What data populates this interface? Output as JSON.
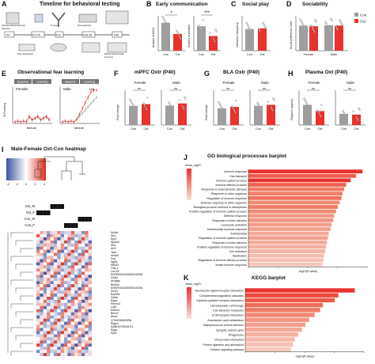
{
  "panels": {
    "A": {
      "label": "A",
      "title": "Timeline for behavioral testing",
      "steps": [
        "Intracranial dorsal pad injection",
        "Pup separation",
        "P-ovary",
        "Pre-pubertal",
        "Observational fear learning"
      ],
      "ages": [
        "P0",
        "P2-P5",
        "P21",
        "P34-36",
        "P40"
      ]
    },
    "B": {
      "label": "B",
      "title": "Early communication",
      "ylabel1": "Number of USVs",
      "ylabel2": "Number of phrases",
      "sig1": "*",
      "sig2": "***",
      "groups": [
        "Con",
        "Oxt"
      ],
      "usv": [
        {
          "group": "Con",
          "value": 80
        },
        {
          "group": "Oxt",
          "value": 48
        }
      ],
      "phrases": [
        {
          "group": "Con",
          "value": 70
        },
        {
          "group": "Oxt",
          "value": 42
        }
      ]
    },
    "C": {
      "label": "C",
      "title": "Social play",
      "ylabel": "Interaction frequency",
      "bars": [
        {
          "group": "Con",
          "value": 0.62
        },
        {
          "group": "Oxt",
          "value": 0.64
        }
      ]
    },
    "D": {
      "label": "D",
      "title": "Sociability",
      "ylabel": "Social preference index",
      "categories": [
        "Female",
        "Male"
      ],
      "legend": [
        {
          "name": "Con",
          "color": "#9e9e9e"
        },
        {
          "name": "Oxt",
          "color": "#e8322e"
        }
      ],
      "bars": [
        [
          0.72,
          0.7
        ],
        [
          0.73,
          0.72
        ]
      ]
    },
    "E": {
      "label": "E",
      "title": "Observational fear learning",
      "ylabel": "% Freezing",
      "xlabel": "Minute",
      "sublabels": [
        "Female",
        "Male"
      ],
      "phases": [
        "Baseline",
        "Learning"
      ],
      "sig": "***"
    },
    "F": {
      "label": "F",
      "title": "mPFC Oxtr (P40)",
      "ylabel": "Fold change",
      "sub": [
        "Female",
        "Male"
      ],
      "ns": "ns"
    },
    "G": {
      "label": "G",
      "title": "BLA Oxtr (P40)",
      "ylabel": "Fold change",
      "sub": [
        "Female",
        "Male"
      ],
      "ns": "ns"
    },
    "H": {
      "label": "H",
      "title": "Plasma Oxt (P40)",
      "ylabel": "Oxytocin (pg/mL)",
      "sub": [
        "Female",
        "Male"
      ],
      "ns": "ns"
    },
    "I": {
      "label": "I",
      "title": "Male-Female Oxt-Con heatmap",
      "scale": [
        "-4",
        "-2",
        "0",
        "2",
        "4"
      ],
      "rows": [
        "Oxt_M",
        "Oxt_F",
        "Con_M",
        "Con_F"
      ],
      "genes": [
        "Nr4a1",
        "Sik1",
        "Egr2",
        "Apold1",
        "Klf4",
        "Arl3",
        "Tcim",
        "Nr4a3",
        "Fos",
        "Sgrip",
        "Mbnl2",
        "Ctla-1",
        "Lrrc15",
        "ENSRNOG00000019208",
        "Gfra2",
        "Arhgap",
        "Bhlhe2",
        "ENSRNOG00000019205",
        "Derl3",
        "Rpl35a",
        "Gabb",
        "Pcgp3",
        "Ptcrnd1",
        "Lrp6",
        "Enthd1",
        "Dusp6",
        "Mecil",
        "1700028M03Rik",
        "Ptgsrv",
        "Rgs8",
        "Trpc3",
        "Rbfox1",
        "Pitpnm",
        "Nlgn1",
        "Rbm3",
        "Lhx9",
        "Ryodl",
        "Pclo",
        "Sox3",
        "Tbx3",
        "Erc2",
        "Ncr3",
        "AABR07051615.1",
        "Rgcc"
      ],
      "genes_shown": [
        "Nr4a1",
        "Sik1",
        "Egr2",
        "Apold1",
        "Klf4",
        "Arl3",
        "Tcim",
        "Nr4a3",
        "Fos",
        "Sgrip",
        "Mbnl2",
        "Ctla-1",
        "Lrrc15",
        "ENSRNOG00000019208",
        "Gfra2",
        "Arhgap",
        "Bhlhe2",
        "ENSRNOG00000019206",
        "Derl3",
        "Rpl35a",
        "Gabb",
        "Rgcd",
        "Ptcrnd1",
        "Lrp6",
        "Enthd1",
        "Bmrr2",
        "Mecil",
        "1700028M03Rik",
        "Ptgsrv",
        "AABR07051615.1",
        "Rgcc",
        "Rpl3"
      ]
    },
    "J": {
      "label": "J",
      "title": "GO biological processes barplot",
      "legend_title": "mean_logFC",
      "xlabel": "-log10(P-value)",
      "terms": [
        "Immune response",
        "Gas transport",
        "Immune system process",
        "Immune effector process",
        "Response to external biotic stimulus",
        "Response to other organism",
        "Regulation of immune response",
        "Defense response to other organism",
        "Biological process involved in interspecies",
        "Positive regulation of immune system process",
        "Defense response",
        "Response to biotic stimulus",
        "Leukocyte activation",
        "Antimicrobial humoral response",
        "Antimicrobial",
        "Regulation of immune system process",
        "Response to biotic stimulus",
        "Positive regulation of immune response",
        "Cell activation",
        "Myelination",
        "Regulation of immune effector process",
        "Innate immune response"
      ],
      "values": [
        12.5,
        11.8,
        11.2,
        10.7,
        10.5,
        10.3,
        10.2,
        10.0,
        9.8,
        9.6,
        9.4,
        9.3,
        9.1,
        9.0,
        8.8,
        8.7,
        8.6,
        8.5,
        8.4,
        8.3,
        8.2,
        8.1
      ],
      "colors": [
        "#e8322e",
        "#ef5a4c",
        "#e8322e",
        "#f0624f",
        "#f07a63",
        "#f07d68",
        "#f07060",
        "#ef8a72",
        "#f07d68",
        "#f08a72",
        "#f29a84",
        "#f09480",
        "#f29c88",
        "#f2a08c",
        "#f4a896",
        "#f2a090",
        "#f4ac9a",
        "#f4b0a0",
        "#f4b4a4",
        "#f6bcae",
        "#f6c0b2",
        "#f6c6ba"
      ]
    },
    "K": {
      "label": "K",
      "title": "KEGG barplot",
      "legend_title": "mean_logFC",
      "xlabel": "-log10(P-value)",
      "terms": [
        "Neuroactive ligand-receptor interaction",
        "Complement/coagulation cascades",
        "Cytokine-cytokine receptor interaction",
        "Hematopoietic cell lineage",
        "Cell adhesion molecules",
        "ECM-receptor interaction",
        "Arachidonic acid metabolism",
        "Staphylococcus aureus infection",
        "Synaptic vesicle cycle",
        "Phagosome",
        "Viral protein interaction",
        "Protein digestion and absorption",
        "Calcium signaling pathway"
      ],
      "values": [
        12.0,
        10.2,
        9.8,
        8.5,
        8.2,
        7.6,
        7.0,
        6.6,
        6.2,
        5.8,
        5.4,
        5.2,
        5.0
      ],
      "colors": [
        "#e8322e",
        "#ec4a3c",
        "#ef5a4a",
        "#f06a58",
        "#f07a66",
        "#f08874",
        "#f29482",
        "#f29e8e",
        "#f4a898",
        "#f4b0a2",
        "#f6b8aa",
        "#f6c0b4",
        "#f8c8bc"
      ]
    }
  }
}
